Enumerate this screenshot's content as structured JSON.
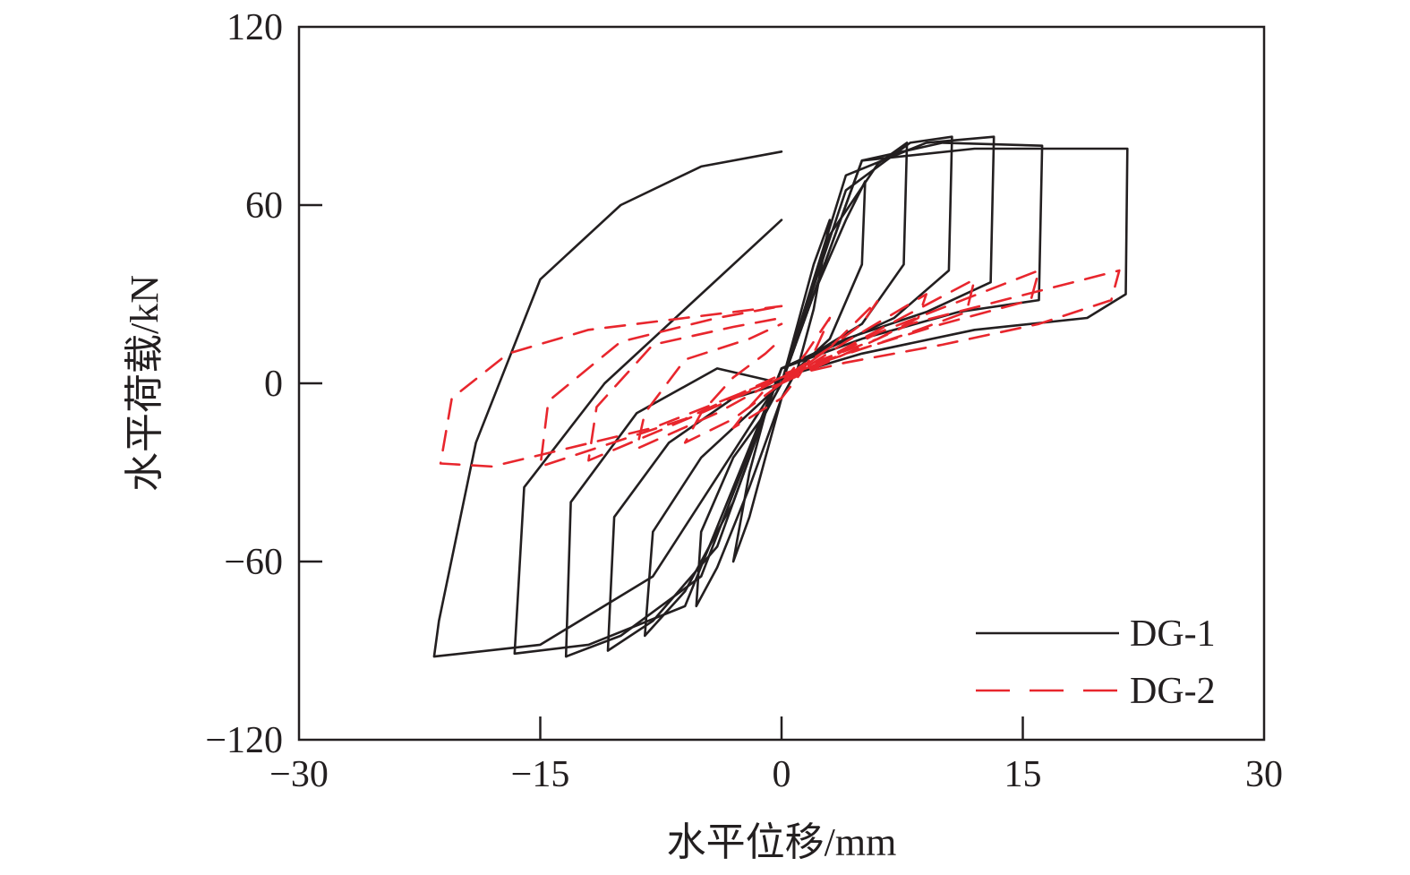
{
  "chart_data": {
    "type": "line",
    "title": "",
    "xlabel": "水平位移/mm",
    "ylabel": "水平荷载/kN",
    "xlim": [
      -30,
      30
    ],
    "ylim": [
      -120,
      120
    ],
    "x_ticks": [
      -30,
      -15,
      0,
      15,
      30
    ],
    "x_tick_labels": [
      "−30",
      "−15",
      "0",
      "15",
      "30"
    ],
    "y_ticks": [
      -120,
      -60,
      0,
      60,
      120
    ],
    "y_tick_labels": [
      "−120",
      "−60",
      "0",
      "60",
      "120"
    ],
    "grid": false,
    "legend_position": "bottom-right",
    "colors": {
      "axis": "#231f20",
      "DG-1": "#231f20",
      "DG-2": "#e8262d"
    },
    "series": [
      {
        "name": "DG-1",
        "style": "solid",
        "loops": [
          {
            "x": [
              0,
              1,
              2,
              3,
              2,
              1,
              0,
              -1,
              -2,
              -3,
              -2,
              -1,
              0
            ],
            "y": [
              0,
              20,
              40,
              55,
              25,
              5,
              -5,
              -25,
              -45,
              -60,
              -30,
              -10,
              0
            ]
          },
          {
            "x": [
              0,
              2,
              4,
              5.2,
              5,
              3,
              1,
              0,
              -2,
              -4,
              -5.3,
              -5,
              -3,
              -1,
              0
            ],
            "y": [
              0,
              30,
              55,
              68,
              40,
              15,
              5,
              -5,
              -35,
              -62,
              -75,
              -50,
              -25,
              -10,
              0
            ]
          },
          {
            "x": [
              0,
              3,
              6,
              7.8,
              7.6,
              5,
              2,
              0,
              -3,
              -6,
              -8.5,
              -8,
              -5,
              -2,
              0
            ],
            "y": [
              0,
              50,
              74,
              81,
              40,
              20,
              10,
              5,
              -40,
              -70,
              -85,
              -50,
              -25,
              -10,
              0
            ]
          },
          {
            "x": [
              0,
              4,
              8,
              10.6,
              10.4,
              7,
              3,
              0,
              -4,
              -8,
              -10.8,
              -10.4,
              -7,
              -3,
              0
            ],
            "y": [
              0,
              65,
              81,
              83,
              38,
              22,
              12,
              5,
              -55,
              -80,
              -90,
              -45,
              -20,
              -5,
              0
            ]
          },
          {
            "x": [
              0,
              4,
              9,
              13.2,
              13.0,
              9,
              4,
              0,
              -5,
              -10,
              -13.4,
              -13.1,
              -9,
              -4,
              0
            ],
            "y": [
              0,
              70,
              81,
              83,
              34,
              24,
              15,
              5,
              -65,
              -85,
              -92,
              -40,
              -10,
              5,
              0
            ]
          },
          {
            "x": [
              0,
              5,
              10,
              16.2,
              16.0,
              11,
              5,
              0,
              -6,
              -12,
              -16.6,
              -16.0,
              -11,
              -5,
              0
            ],
            "y": [
              0,
              75,
              81,
              80,
              28,
              24,
              15,
              5,
              -75,
              -88,
              -91,
              -35,
              0,
              30,
              55
            ]
          },
          {
            "x": [
              0,
              5,
              12,
              21.5,
              21.4,
              19,
              12,
              5,
              0,
              -8,
              -15,
              -21.6,
              -21.3,
              -19,
              -15,
              -10,
              -5,
              0
            ],
            "y": [
              0,
              75,
              79,
              79,
              30,
              22,
              18,
              10,
              2,
              -65,
              -88,
              -92,
              -80,
              -20,
              35,
              60,
              73,
              78
            ]
          }
        ]
      },
      {
        "name": "DG-2",
        "style": "dashed",
        "loops": [
          {
            "x": [
              0,
              1.5,
              3,
              2,
              1,
              0,
              -1.5,
              -3,
              -2,
              -1,
              0
            ],
            "y": [
              0,
              10,
              22,
              10,
              2,
              -5,
              -10,
              -15,
              -8,
              -2,
              0
            ]
          },
          {
            "x": [
              0,
              3,
              6,
              5,
              3,
              1,
              0,
              -3,
              -6,
              -5,
              -3,
              -1,
              0
            ],
            "y": [
              0,
              12,
              28,
              20,
              12,
              5,
              0,
              -12,
              -20,
              -10,
              2,
              10,
              15
            ]
          },
          {
            "x": [
              0,
              4,
              9,
              8.5,
              6,
              2,
              0,
              -4,
              -9,
              -8.5,
              -6,
              -2,
              0
            ],
            "y": [
              0,
              14,
              30,
              22,
              15,
              7,
              2,
              -10,
              -22,
              -10,
              8,
              15,
              20
            ]
          },
          {
            "x": [
              0,
              5,
              12,
              11.5,
              8,
              3,
              0,
              -5,
              -12,
              -11.5,
              -8,
              -3,
              0
            ],
            "y": [
              0,
              15,
              35,
              24,
              17,
              8,
              2,
              -10,
              -26,
              -8,
              13,
              19,
              22
            ]
          },
          {
            "x": [
              0,
              6,
              16,
              15.5,
              10,
              4,
              0,
              -6,
              -15,
              -14.5,
              -10,
              -4,
              0
            ],
            "y": [
              0,
              17,
              38,
              28,
              20,
              10,
              3,
              -12,
              -28,
              -6,
              14,
              22,
              26
            ]
          },
          {
            "x": [
              0,
              8,
              21,
              20.5,
              16,
              10,
              4,
              0,
              -8,
              -18,
              -21.2,
              -20.5,
              -17,
              -12,
              -6,
              0
            ],
            "y": [
              0,
              20,
              38,
              28,
              20,
              13,
              7,
              2,
              -15,
              -28,
              -27,
              -5,
              10,
              18,
              22,
              26
            ]
          }
        ]
      }
    ]
  }
}
